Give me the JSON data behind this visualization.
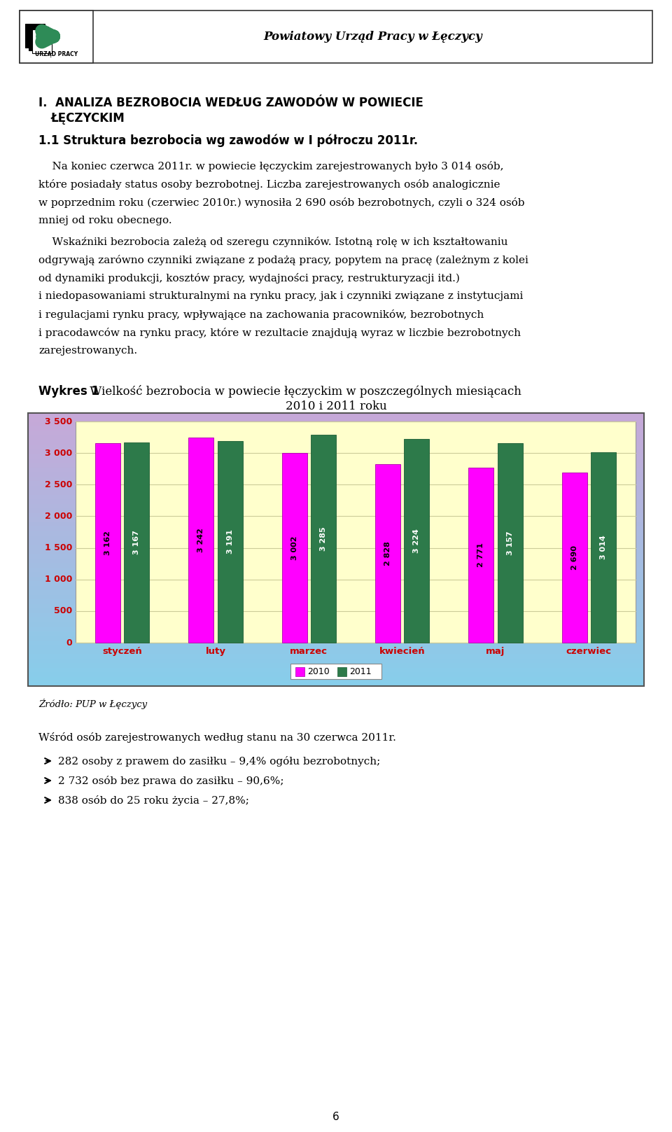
{
  "header_title": "Powiatowy Urząd Pracy w Łęczycy",
  "section_title_line1": "I.  ANALIZA BEZROBOCIA WEDŁUG ZAWODÓW W POWIECIE",
  "section_title_line2": "ŁĘCZYCKIM",
  "subsection_title": "1.1 Struktura bezrobocia wg zawodów w I półroczu 2011r.",
  "para1_lines": [
    "    Na koniec czerwca 2011r. w powiecie łęczyckim zarejestrowanych było 3 014 osób,",
    "które posiadały status osoby bezrobotnej. Liczba zarejestrowanych osób analogicznie",
    "w poprzednim roku (czerwiec 2010r.) wynosiła 2 690 osób bezrobotnych, czyli o 324 osób",
    "mniej od roku obecnego."
  ],
  "para2_lines": [
    "    Wskaźniki bezrobocia zależą od szeregu czynników. Istotną rolę w ich kształtowaniu",
    "odgrywają zarówno czynniki związane z podażą pracy, popytem na pracę (zależnym z kolei",
    "od dynamiki produkcji, kosztów pracy, wydajności pracy, restrukturyzacji itd.)",
    "i niedopasowaniami strukturalnymi na rynku pracy, jak i czynniki związane z instytucjami",
    "i regulacjami rynku pracy, wpływające na zachowania pracowników, bezrobotnych",
    "i pracodawców na rynku pracy, które w rezultacie znajdują wyraz w liczbie bezrobotnych",
    "zarejestrowanych."
  ],
  "chart_label_bold": "Wykres 1",
  "chart_title_rest": " Wielkość bezrobocia w powiecie łęczyckim w poszczególnych miesiącach",
  "chart_title_line2": "2010 i 2011 roku",
  "categories": [
    "styczeń",
    "luty",
    "marzec",
    "kwiecień",
    "maj",
    "czerwiec"
  ],
  "values_2010": [
    3162,
    3242,
    3002,
    2828,
    2771,
    2690
  ],
  "values_2011": [
    3167,
    3191,
    3285,
    3224,
    3157,
    3014
  ],
  "bar_color_2010": "#FF00FF",
  "bar_color_2011": "#2D7A4A",
  "ylim_max": 3500,
  "yticks": [
    0,
    500,
    1000,
    1500,
    2000,
    2500,
    3000,
    3500
  ],
  "legend_2010": "2010",
  "legend_2011": "2011",
  "source_text": "Źródło: PUP w Łęczycy",
  "footer_text1": "Wśród osób zarejestrowanych według stanu na 30 czerwca 2011r.",
  "bullet1": "282 osoby z prawem do zasiłku – 9,4% ogółu bezrobotnych;",
  "bullet2": "2 732 osób bez prawa do zasiłku – 90,6%;",
  "bullet3": "838 osób do 25 roku życia – 27,8%;",
  "page_number": "6",
  "tick_label_color": "#CC0000",
  "xlabel_color": "#CC0000"
}
